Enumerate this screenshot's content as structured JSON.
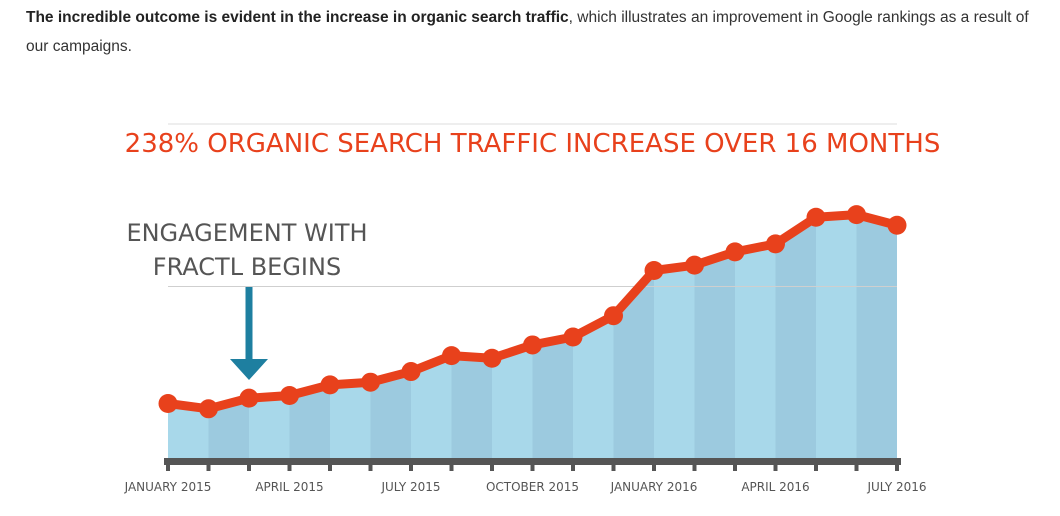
{
  "intro": {
    "bold": "The incredible outcome is evident in the increase in organic search traffic",
    "rest": ", which illustrates an improvement in Google rankings as a result of our campaigns."
  },
  "chart_data": {
    "type": "area",
    "title": "238% ORGANIC SEARCH TRAFFIC INCREASE OVER 16 MONTHS",
    "annotation": [
      "ENGAGEMENT WITH",
      "FRACTL BEGINS"
    ],
    "annotation_index": 2,
    "x_labels": [
      {
        "index": 0,
        "label": "JANUARY 2015"
      },
      {
        "index": 3,
        "label": "APRIL 2015"
      },
      {
        "index": 6,
        "label": "JULY 2015"
      },
      {
        "index": 9,
        "label": "OCTOBER 2015"
      },
      {
        "index": 12,
        "label": "JANUARY 2016"
      },
      {
        "index": 15,
        "label": "APRIL 2016"
      },
      {
        "index": 18,
        "label": "JULY 2016"
      }
    ],
    "values": [
      22,
      20,
      24,
      25,
      29,
      30,
      34,
      40,
      39,
      44,
      47,
      55,
      72,
      74,
      79,
      82,
      92,
      93,
      89
    ],
    "ylim": [
      0,
      100
    ],
    "gridline_value": 66,
    "colors": {
      "line": "#E8411C",
      "fill_light": "#A8D8EA",
      "fill_dark": "#9CCADF",
      "axis": "#555555",
      "arrow": "#1E7FA0",
      "title": "#E8411C"
    }
  }
}
